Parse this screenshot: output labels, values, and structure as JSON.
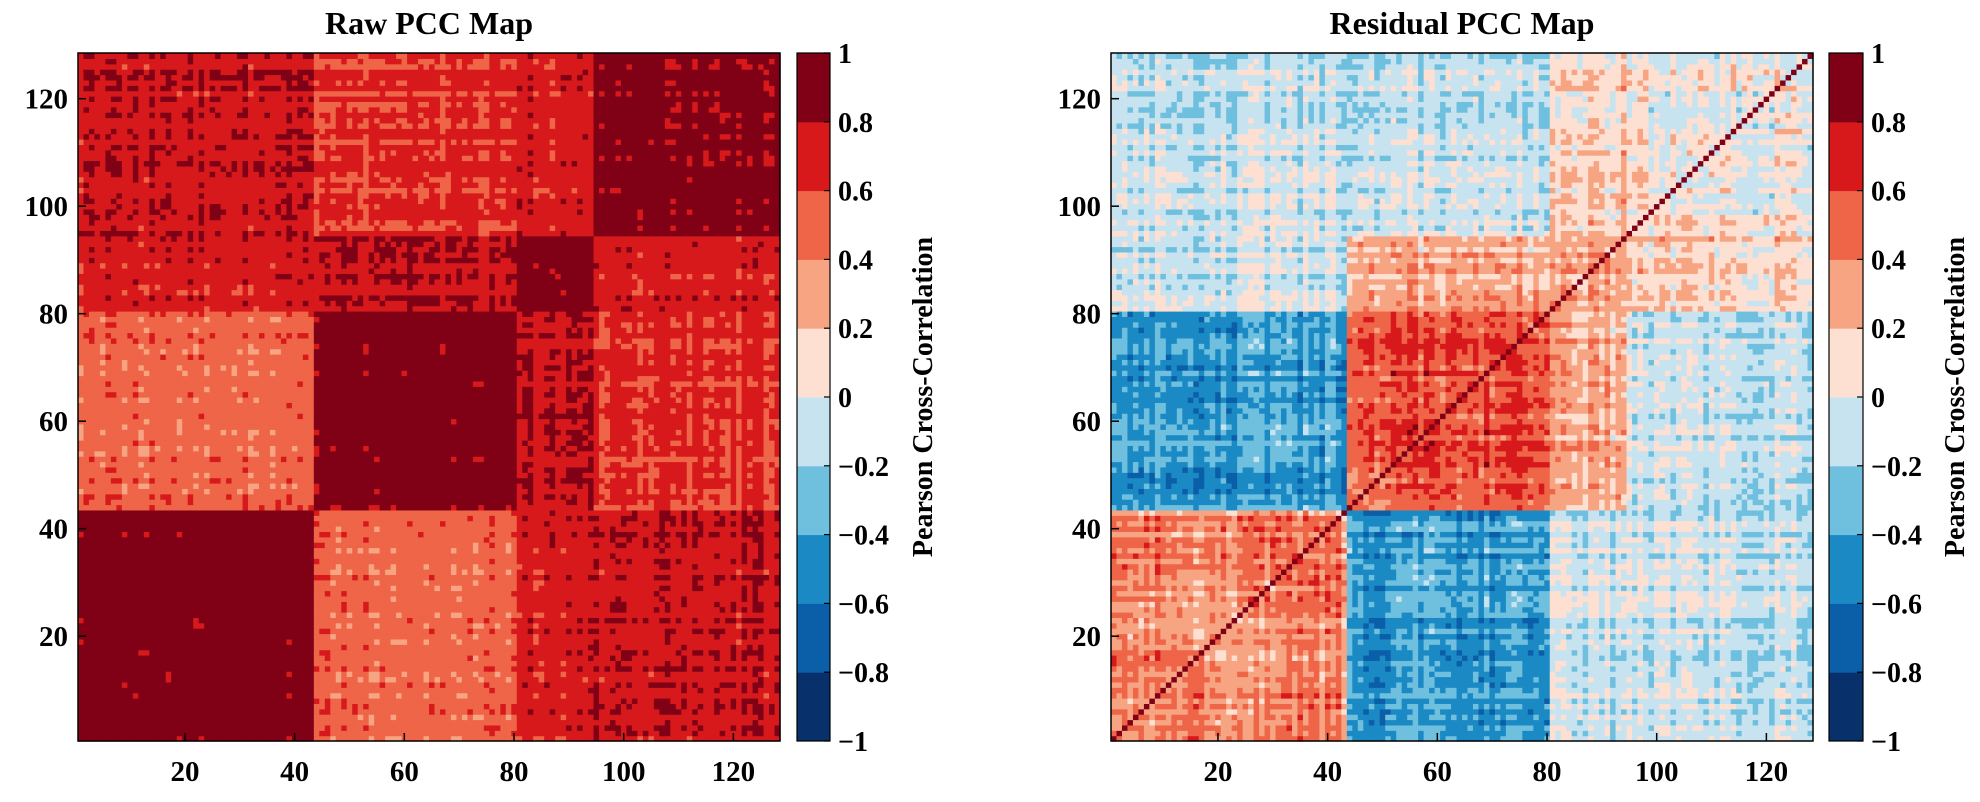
{
  "chart_data": [
    {
      "type": "heatmap",
      "title": "Raw PCC Map",
      "matrix_size": 128,
      "xlim": [
        1,
        128
      ],
      "ylim": [
        1,
        128
      ],
      "x_ticks": [
        20,
        40,
        60,
        80,
        100,
        120
      ],
      "y_ticks": [
        20,
        40,
        60,
        80,
        100,
        120
      ],
      "x_tick_labels": [
        "20",
        "40",
        "60",
        "80",
        "100",
        "120"
      ],
      "y_tick_labels": [
        "20",
        "40",
        "60",
        "80",
        "100",
        "120"
      ],
      "clusters": [
        [
          1,
          43
        ],
        [
          44,
          80
        ],
        [
          81,
          94
        ],
        [
          95,
          128
        ]
      ],
      "cluster_mean_correlation": [
        [
          0.95,
          0.5,
          0.7,
          0.75
        ],
        [
          0.5,
          0.92,
          0.75,
          0.6
        ],
        [
          0.7,
          0.75,
          0.9,
          0.7
        ],
        [
          0.75,
          0.6,
          0.7,
          0.88
        ]
      ],
      "value_noise": 0.15,
      "colorbar": {
        "label": "Pearson Cross-Correlation",
        "range": [
          -1,
          1
        ],
        "ticks": [
          -1,
          -0.8,
          -0.6,
          -0.4,
          -0.2,
          0,
          0.2,
          0.4,
          0.6,
          0.8,
          1
        ],
        "tick_labels": [
          "−1",
          "−0.8",
          "−0.6",
          "−0.4",
          "−0.2",
          "0",
          "0.2",
          "0.4",
          "0.6",
          "0.8",
          "1"
        ],
        "levels": 10
      },
      "grid": false
    },
    {
      "type": "heatmap",
      "title": "Residual PCC Map",
      "matrix_size": 128,
      "xlim": [
        1,
        128
      ],
      "ylim": [
        1,
        128
      ],
      "x_ticks": [
        20,
        40,
        60,
        80,
        100,
        120
      ],
      "y_ticks": [
        20,
        40,
        60,
        80,
        100,
        120
      ],
      "x_tick_labels": [
        "20",
        "40",
        "60",
        "80",
        "100",
        "120"
      ],
      "y_tick_labels": [
        "20",
        "40",
        "60",
        "80",
        "100",
        "120"
      ],
      "clusters": [
        [
          1,
          43
        ],
        [
          44,
          80
        ],
        [
          81,
          94
        ],
        [
          95,
          128
        ]
      ],
      "cluster_mean_correlation": [
        [
          0.4,
          -0.45,
          -0.1,
          -0.1
        ],
        [
          -0.45,
          0.55,
          0.25,
          -0.1
        ],
        [
          -0.1,
          0.25,
          0.3,
          0.15
        ],
        [
          -0.1,
          -0.1,
          0.15,
          0.05
        ]
      ],
      "diagonal_value": 1,
      "value_noise": 0.25,
      "colorbar": {
        "label": "Pearson Cross-Correlation",
        "range": [
          -1,
          1
        ],
        "ticks": [
          -1,
          -0.8,
          -0.6,
          -0.4,
          -0.2,
          0,
          0.2,
          0.4,
          0.6,
          0.8,
          1
        ],
        "tick_labels": [
          "−1",
          "−0.8",
          "−0.6",
          "−0.4",
          "−0.2",
          "0",
          "0.2",
          "0.4",
          "0.6",
          "0.8",
          "1"
        ],
        "levels": 10
      },
      "grid": false
    }
  ],
  "colormap": [
    "#08306b",
    "#0b5ea8",
    "#1b8ac4",
    "#6fbfdf",
    "#c7e3f0",
    "#fde0d2",
    "#f7a482",
    "#ef6548",
    "#d7191c",
    "#800016"
  ]
}
